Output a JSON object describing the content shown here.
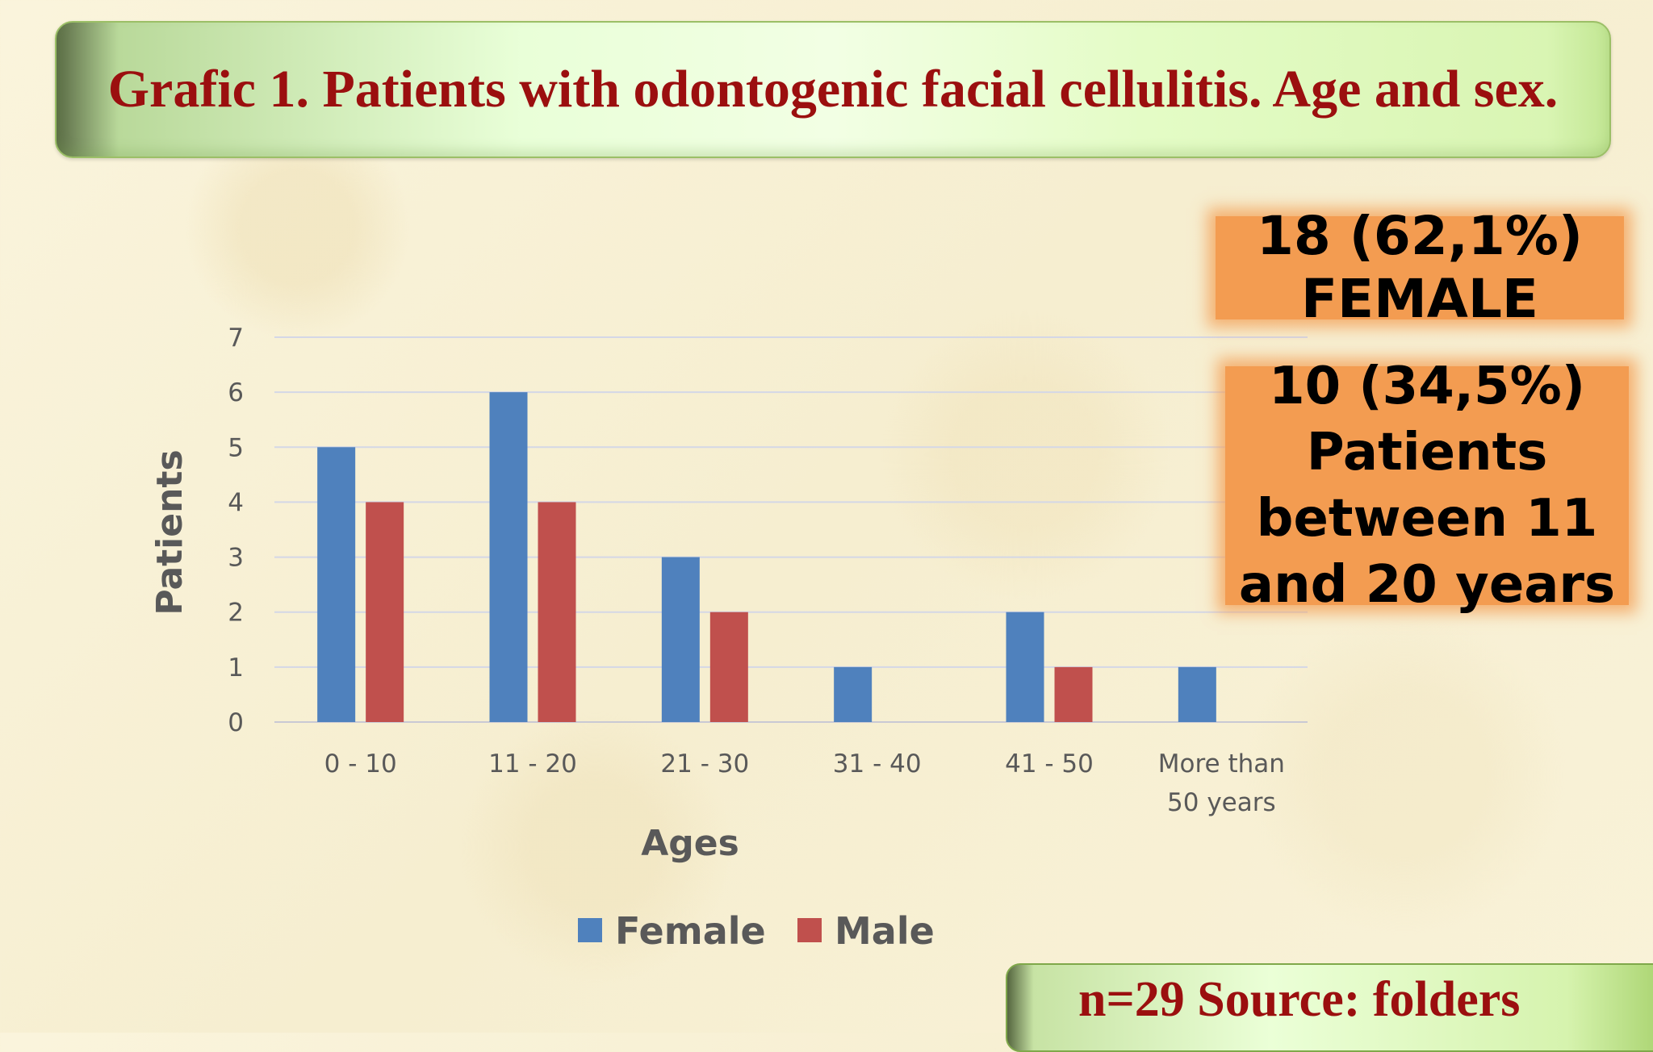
{
  "slide": {
    "title": "Grafic 1.  Patients with odontogenic facial cellulitis. Age and sex.",
    "callout_female": {
      "line1": "18 (62,1%)",
      "line2": "FEMALE"
    },
    "callout_age": {
      "line1": "10 (34,5%)",
      "line2": "Patients",
      "line3": "between 11",
      "line4": "and 20 years"
    },
    "source": "n=29  Source: folders",
    "colors": {
      "title_text": "#9b0f0f",
      "callout_bg": "#f39c51",
      "female": "#4f81bd",
      "male": "#c0504d"
    }
  },
  "chart_data": {
    "type": "bar",
    "categories": [
      "0 - 10",
      "11 - 20",
      "21 - 30",
      "31 - 40",
      "41 - 50",
      "More than 50 years"
    ],
    "category_lines": [
      [
        "0 - 10"
      ],
      [
        "11 - 20"
      ],
      [
        "21 - 30"
      ],
      [
        "31 - 40"
      ],
      [
        "41 - 50"
      ],
      [
        "More than",
        "50 years"
      ]
    ],
    "series": [
      {
        "name": "Female",
        "color": "#4f81bd",
        "values": [
          5,
          6,
          3,
          1,
          2,
          1
        ]
      },
      {
        "name": "Male",
        "color": "#c0504d",
        "values": [
          4,
          4,
          2,
          0,
          1,
          0
        ]
      }
    ],
    "title": "",
    "xlabel": "Ages",
    "ylabel": "Patients",
    "ylim": [
      0,
      7
    ],
    "yticks": [
      0,
      1,
      2,
      3,
      4,
      5,
      6,
      7
    ],
    "grid": true,
    "legend_position": "bottom"
  }
}
